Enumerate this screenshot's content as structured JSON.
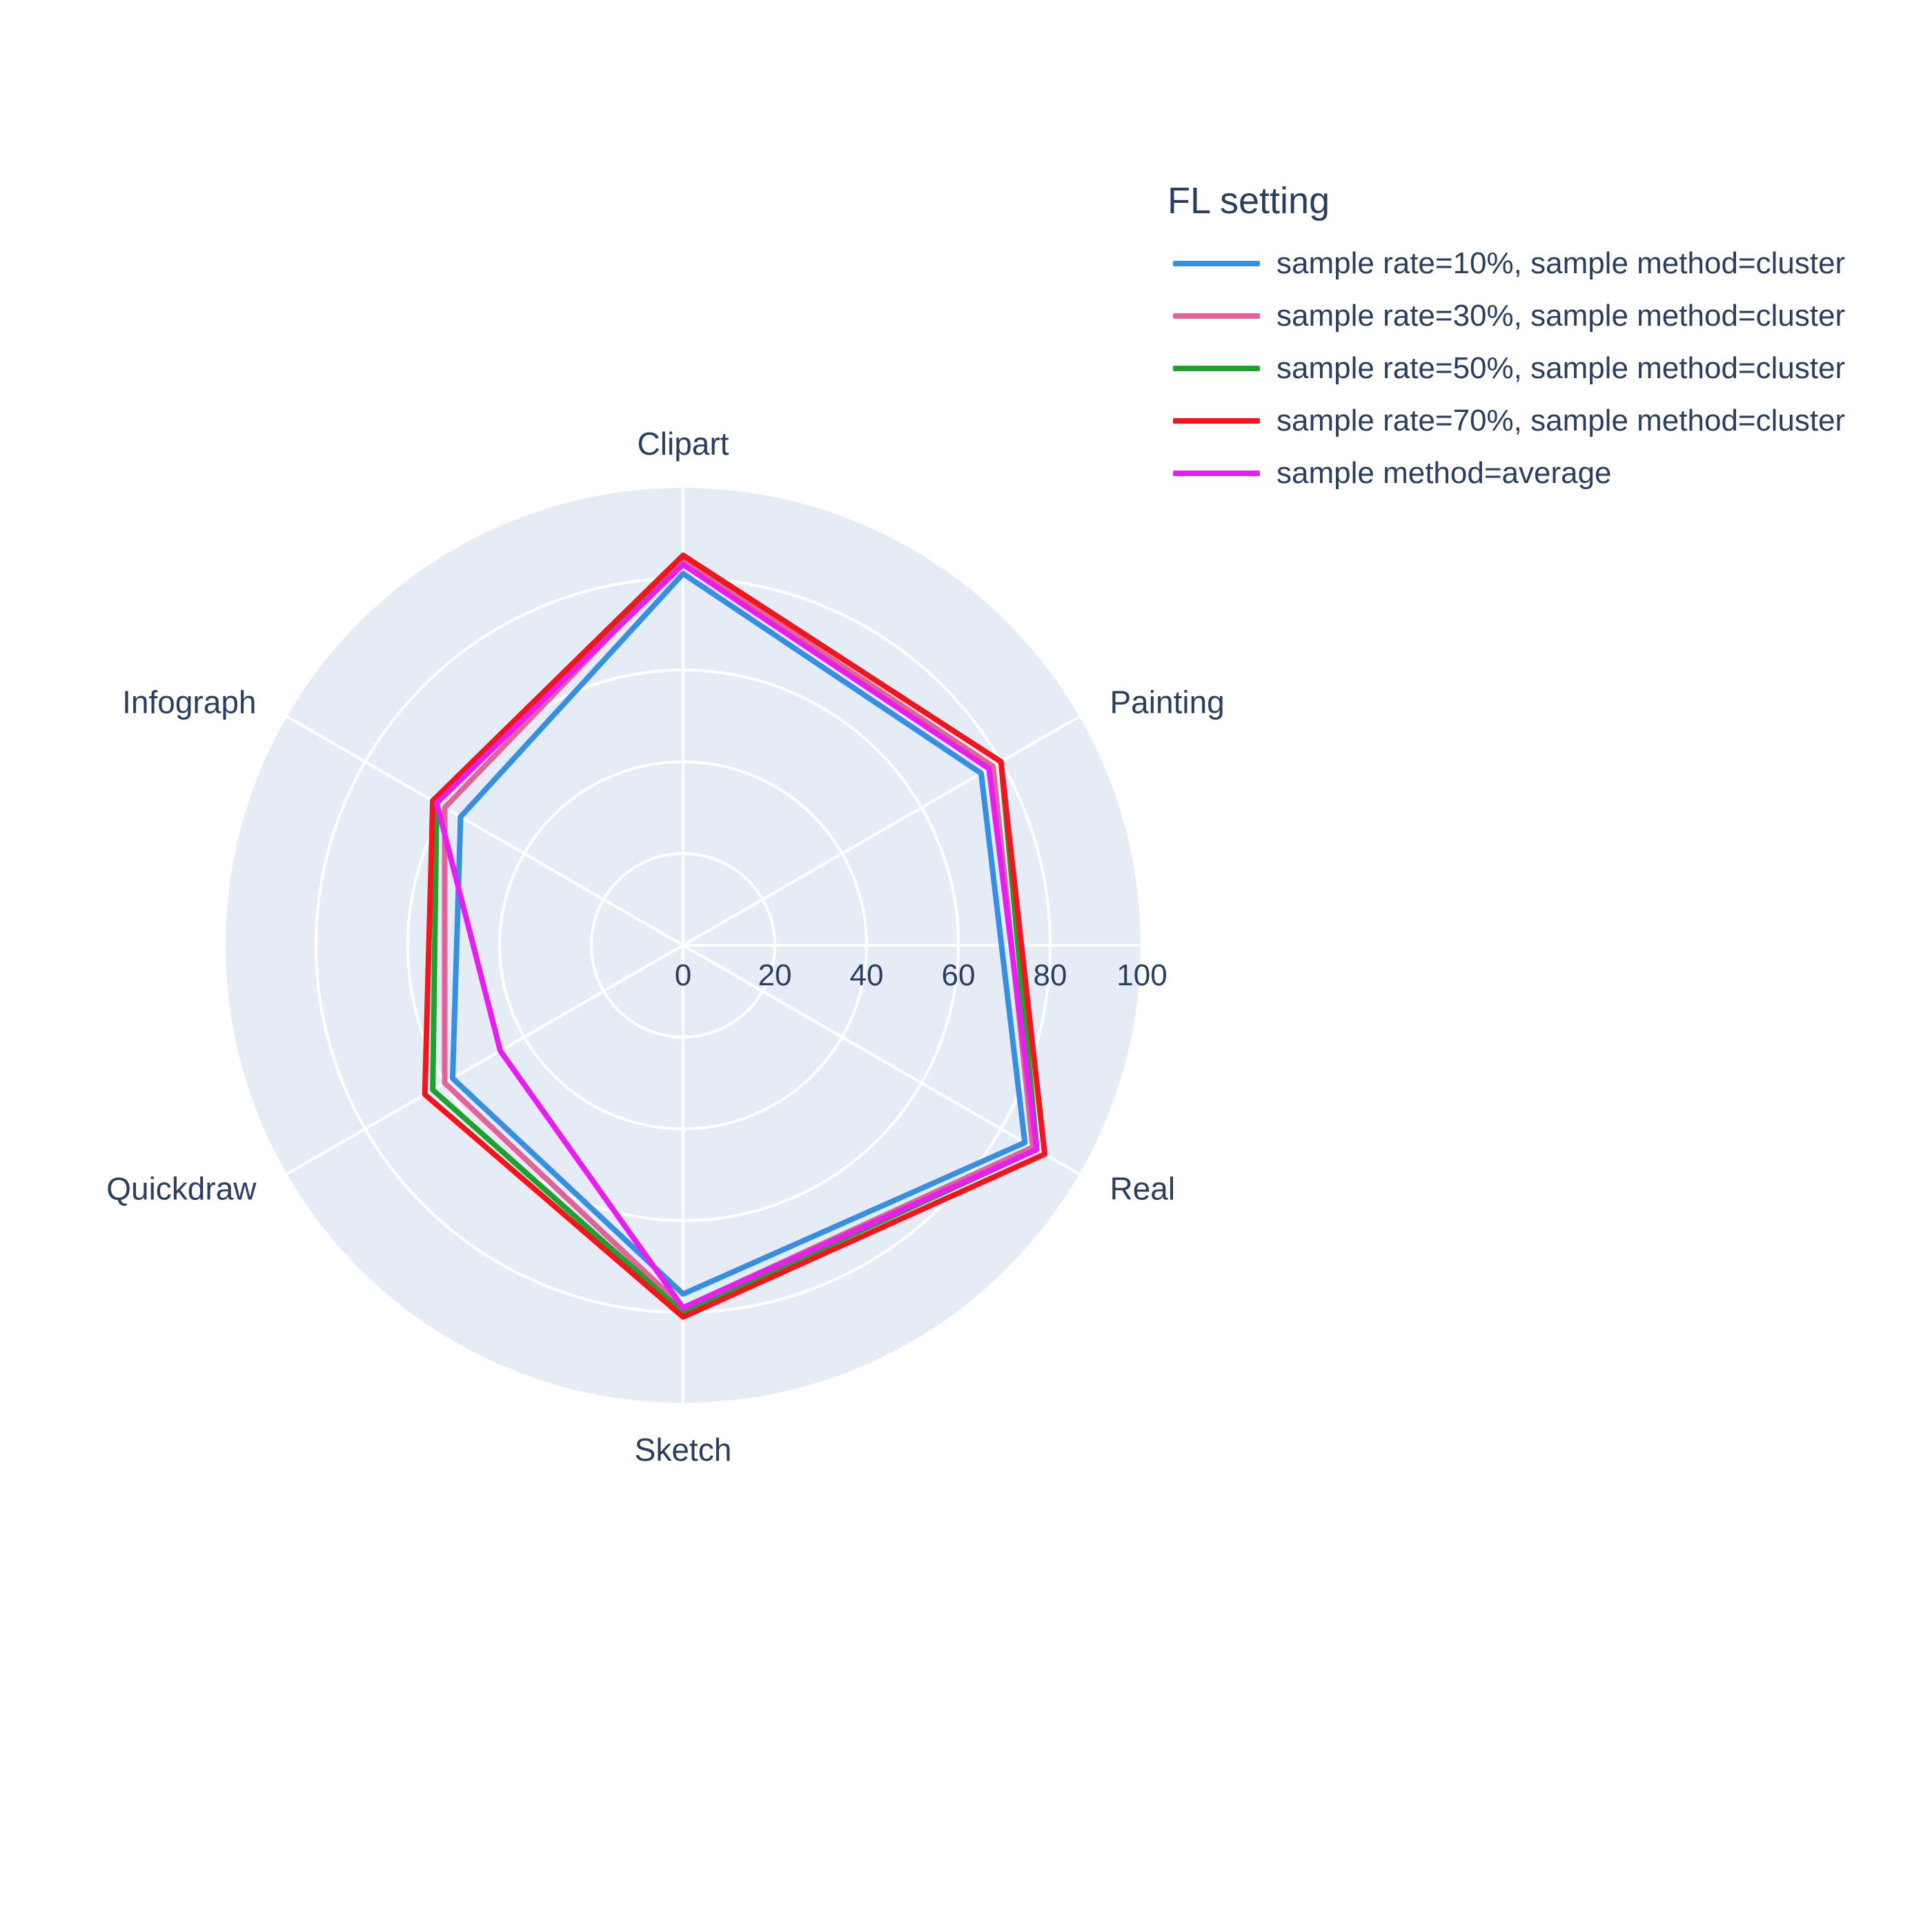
{
  "chart_data": {
    "type": "radar",
    "categories": [
      "Clipart",
      "Painting",
      "Real",
      "Sketch",
      "Quickdraw",
      "Infograph"
    ],
    "radial_axis": {
      "range": [
        0,
        100
      ],
      "tick_values": [
        0,
        20,
        40,
        60,
        80,
        100
      ],
      "tick_labels": [
        "0",
        "20",
        "40",
        "60",
        "80",
        "100"
      ]
    },
    "grid": true,
    "background_color": "#e5ecf6",
    "gridline_color": "#ffffff",
    "legend": {
      "title": "FL setting",
      "placement": "top-right"
    },
    "series": [
      {
        "name": "sample rate=10%, sample method=cluster",
        "color": "#368fe0",
        "values": [
          81,
          75,
          86,
          76,
          58,
          56
        ]
      },
      {
        "name": "sample rate=30%, sample method=cluster",
        "color": "#e0649a",
        "values": [
          84,
          78,
          88,
          79,
          60,
          60
        ]
      },
      {
        "name": "sample rate=50%, sample method=cluster",
        "color": "#1fa12d",
        "values": [
          85,
          80,
          89,
          80,
          63,
          62
        ]
      },
      {
        "name": "sample rate=70%, sample method=cluster",
        "color": "#f5141e",
        "values": [
          85,
          80,
          91,
          81,
          65,
          63
        ]
      },
      {
        "name": "sample method=average",
        "color": "#e61ef0",
        "values": [
          83,
          77,
          89,
          79,
          46,
          62
        ]
      }
    ]
  }
}
